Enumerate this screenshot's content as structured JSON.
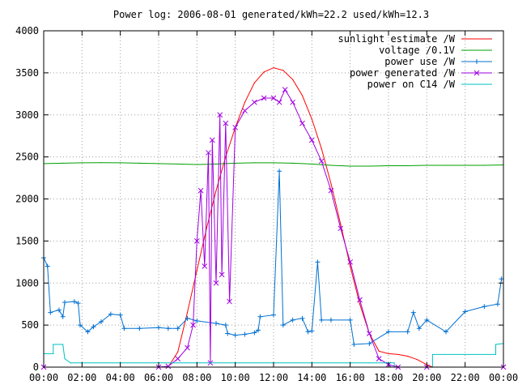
{
  "chart_data": {
    "type": "line",
    "title": "Power log: 2006-08-01 generated/kWh=22.2 used/kWh=12.3",
    "xlabel": "",
    "ylabel": "",
    "xlim": [
      0,
      24
    ],
    "ylim": [
      0,
      4000
    ],
    "x_ticks": [
      "00:00",
      "02:00",
      "04:00",
      "06:00",
      "08:00",
      "10:00",
      "12:00",
      "14:00",
      "16:00",
      "18:00",
      "20:00",
      "22:00",
      "00:00"
    ],
    "y_ticks": [
      "0",
      "500",
      "1000",
      "1500",
      "2000",
      "2500",
      "3000",
      "3500",
      "4000"
    ],
    "grid": true,
    "legend_position": "top-right",
    "series": [
      {
        "name": "sunlight estimate /W",
        "color": "#ff0000",
        "marker": "none",
        "points": [
          [
            6.5,
            0
          ],
          [
            7,
            180
          ],
          [
            7.5,
            650
          ],
          [
            8,
            1150
          ],
          [
            8.5,
            1650
          ],
          [
            9,
            2100
          ],
          [
            9.5,
            2500
          ],
          [
            10,
            2850
          ],
          [
            10.5,
            3150
          ],
          [
            11,
            3380
          ],
          [
            11.5,
            3510
          ],
          [
            12,
            3560
          ],
          [
            12.5,
            3530
          ],
          [
            13,
            3420
          ],
          [
            13.5,
            3230
          ],
          [
            14,
            2950
          ],
          [
            14.5,
            2600
          ],
          [
            15,
            2180
          ],
          [
            15.5,
            1700
          ],
          [
            16,
            1200
          ],
          [
            16.5,
            750
          ],
          [
            17,
            400
          ],
          [
            17.5,
            190
          ],
          [
            18,
            160
          ],
          [
            18.5,
            150
          ],
          [
            19,
            130
          ],
          [
            19.5,
            90
          ],
          [
            20,
            30
          ],
          [
            20.3,
            0
          ]
        ]
      },
      {
        "name": "voltage /0.1V",
        "color": "#00a000",
        "marker": "none",
        "points": [
          [
            0,
            2420
          ],
          [
            1,
            2425
          ],
          [
            2,
            2430
          ],
          [
            3,
            2432
          ],
          [
            4,
            2430
          ],
          [
            5,
            2425
          ],
          [
            6,
            2420
          ],
          [
            7,
            2415
          ],
          [
            8,
            2410
          ],
          [
            9,
            2415
          ],
          [
            10,
            2425
          ],
          [
            11,
            2430
          ],
          [
            12,
            2430
          ],
          [
            13,
            2425
          ],
          [
            14,
            2415
          ],
          [
            15,
            2400
          ],
          [
            16,
            2390
          ],
          [
            17,
            2390
          ],
          [
            18,
            2395
          ],
          [
            19,
            2395
          ],
          [
            20,
            2400
          ],
          [
            21,
            2400
          ],
          [
            22,
            2400
          ],
          [
            23,
            2400
          ],
          [
            24,
            2405
          ]
        ]
      },
      {
        "name": "power use /W",
        "color": "#0070d0",
        "marker": "plus",
        "points": [
          [
            0,
            1300
          ],
          [
            0.2,
            1200
          ],
          [
            0.35,
            650
          ],
          [
            0.8,
            680
          ],
          [
            1,
            600
          ],
          [
            1.1,
            770
          ],
          [
            1.6,
            780
          ],
          [
            1.8,
            760
          ],
          [
            1.9,
            500
          ],
          [
            2.3,
            420
          ],
          [
            2.6,
            480
          ],
          [
            3,
            540
          ],
          [
            3.5,
            630
          ],
          [
            4,
            620
          ],
          [
            4.2,
            460
          ],
          [
            5,
            460
          ],
          [
            6,
            470
          ],
          [
            6.5,
            460
          ],
          [
            7,
            460
          ],
          [
            7.5,
            580
          ],
          [
            8,
            550
          ],
          [
            9,
            520
          ],
          [
            9.5,
            500
          ],
          [
            9.6,
            400
          ],
          [
            10,
            380
          ],
          [
            10.5,
            390
          ],
          [
            11,
            410
          ],
          [
            11.2,
            440
          ],
          [
            11.3,
            600
          ],
          [
            12,
            620
          ],
          [
            12.3,
            2330
          ],
          [
            12.5,
            500
          ],
          [
            13,
            560
          ],
          [
            13.5,
            580
          ],
          [
            13.8,
            420
          ],
          [
            14,
            430
          ],
          [
            14.3,
            1250
          ],
          [
            14.5,
            560
          ],
          [
            15,
            560
          ],
          [
            16,
            560
          ],
          [
            16.2,
            270
          ],
          [
            17,
            280
          ],
          [
            18,
            420
          ],
          [
            19,
            420
          ],
          [
            19.3,
            650
          ],
          [
            19.6,
            460
          ],
          [
            20,
            560
          ],
          [
            21,
            420
          ],
          [
            22,
            660
          ],
          [
            23,
            720
          ],
          [
            23.7,
            750
          ],
          [
            23.9,
            1050
          ]
        ]
      },
      {
        "name": "power generated /W",
        "color": "#a000e0",
        "marker": "x",
        "points": [
          [
            0,
            0
          ],
          [
            6,
            0
          ],
          [
            6.5,
            10
          ],
          [
            7,
            100
          ],
          [
            7.5,
            230
          ],
          [
            7.8,
            500
          ],
          [
            8,
            1500
          ],
          [
            8.2,
            2100
          ],
          [
            8.4,
            1200
          ],
          [
            8.6,
            2550
          ],
          [
            8.7,
            50
          ],
          [
            8.8,
            2700
          ],
          [
            9,
            1000
          ],
          [
            9.2,
            3000
          ],
          [
            9.3,
            1100
          ],
          [
            9.5,
            2900
          ],
          [
            9.7,
            780
          ],
          [
            10,
            2850
          ],
          [
            10.5,
            3050
          ],
          [
            11,
            3150
          ],
          [
            11.5,
            3200
          ],
          [
            12,
            3200
          ],
          [
            12.3,
            3150
          ],
          [
            12.6,
            3300
          ],
          [
            13,
            3150
          ],
          [
            13.5,
            2900
          ],
          [
            14,
            2700
          ],
          [
            14.5,
            2450
          ],
          [
            15,
            2100
          ],
          [
            15.5,
            1650
          ],
          [
            16,
            1250
          ],
          [
            16.5,
            800
          ],
          [
            17,
            400
          ],
          [
            17.5,
            100
          ],
          [
            18,
            30
          ],
          [
            18.5,
            0
          ],
          [
            20,
            0
          ],
          [
            24,
            0
          ]
        ]
      },
      {
        "name": "power on C14 /W",
        "color": "#00c0c0",
        "marker": "none",
        "points": [
          [
            0,
            160
          ],
          [
            0.5,
            160
          ],
          [
            0.5,
            270
          ],
          [
            1,
            270
          ],
          [
            1.1,
            100
          ],
          [
            1.4,
            50
          ],
          [
            6,
            50
          ],
          [
            8,
            50
          ],
          [
            12,
            50
          ],
          [
            16,
            50
          ],
          [
            17,
            50
          ],
          [
            18.3,
            50
          ],
          [
            18.3,
            0
          ],
          [
            20.3,
            0
          ],
          [
            20.3,
            150
          ],
          [
            23.6,
            150
          ],
          [
            23.6,
            270
          ],
          [
            24,
            280
          ]
        ]
      }
    ]
  }
}
